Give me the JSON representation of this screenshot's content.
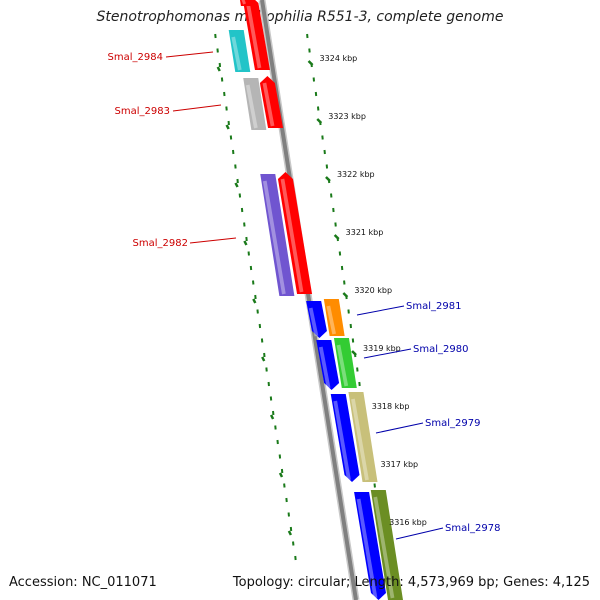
{
  "title": "Stenotrophomonas maltophilia R551-3, complete genome",
  "footer": {
    "accession": "Accession: NC_011071",
    "topology": "Topology: circular; Length: 4,573,969 bp; Genes: 4,125"
  },
  "scale_labels": [
    "3324 kbp",
    "3323 kbp",
    "3322 kbp",
    "3321 kbp",
    "3320 kbp",
    "3319 kbp",
    "3318 kbp",
    "3317 kbp",
    "3316 kbp"
  ],
  "colors": {
    "left_label": "#cc0000",
    "right_label": "#0000aa",
    "scale_ticks": "#1a7a1a",
    "backbone": "#808080"
  },
  "genes": [
    {
      "name": "Smal_2984",
      "strand": "reverse",
      "cog_color": "#22c4c8"
    },
    {
      "name": "Smal_2983",
      "strand": "reverse",
      "cog_color": "#b5b5b5"
    },
    {
      "name": "Smal_2982",
      "strand": "reverse",
      "cog_color": "#7055d0"
    },
    {
      "name": "Smal_2981",
      "strand": "forward",
      "cog_color": "#ff8c00"
    },
    {
      "name": "Smal_2980",
      "strand": "forward",
      "cog_color": "#33cc33"
    },
    {
      "name": "Smal_2979",
      "strand": "forward",
      "cog_color": "#c8c07a"
    },
    {
      "name": "Smal_2978",
      "strand": "forward",
      "cog_color": "#6b8e23"
    }
  ]
}
